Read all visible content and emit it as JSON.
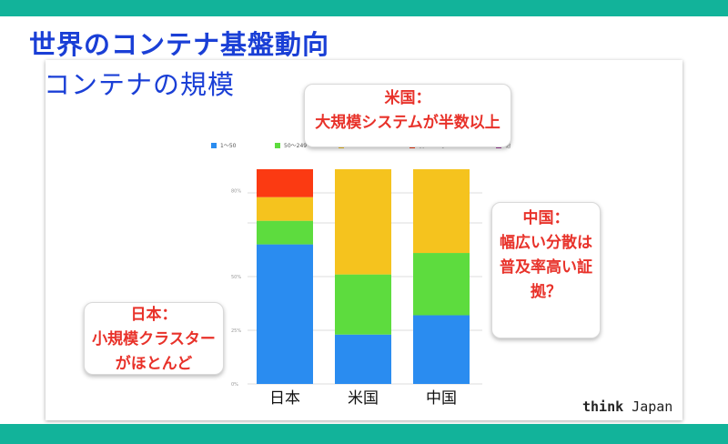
{
  "title": "世界のコンテナ基盤動向",
  "subtitle": "コンテナの規模",
  "callouts": {
    "us": [
      "米国：",
      "大規模システムが半数以上"
    ],
    "jp": [
      "日本：",
      "小規模クラスター",
      "がほとんど"
    ],
    "cn": [
      "中国：",
      "幅広い分散は",
      "普及率高い証",
      "拠？"
    ]
  },
  "brand": {
    "bold": "think",
    "rest": " Japan"
  },
  "colors": {
    "accent_bar": "#12b39a",
    "title": "#1a3fd6",
    "callout_text": "#e8322a"
  },
  "chart_data": {
    "type": "bar",
    "stacked": true,
    "categories": [
      "日本",
      "米国",
      "中国"
    ],
    "series": [
      {
        "name": "1〜50",
        "color": "#2a8cf0",
        "values": [
          65,
          23,
          32
        ]
      },
      {
        "name": "50〜249",
        "color": "#5ddc3e",
        "values": [
          11,
          28,
          29
        ]
      },
      {
        "name": "250+",
        "color": "#f5c31e",
        "values": [
          11,
          49,
          39
        ]
      },
      {
        "name": "使っていない",
        "color": "#fb3a12",
        "values": [
          13,
          0,
          0
        ]
      },
      {
        "name": "他",
        "color": "#a63a9e",
        "values": [
          0,
          0,
          0
        ]
      }
    ],
    "y_ticks": [
      "0%",
      "25%",
      "50%",
      "80%"
    ],
    "ylim": [
      0,
      100
    ],
    "legend_position": "top",
    "grid": true
  }
}
